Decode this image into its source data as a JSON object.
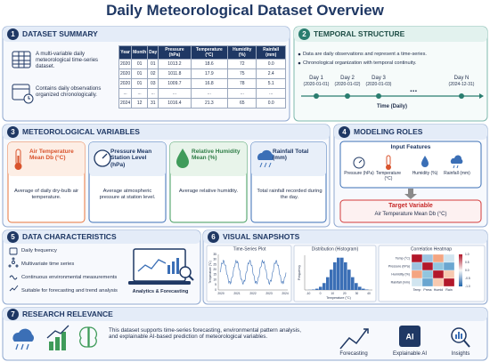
{
  "title": "Daily Meteorological Dataset Overview",
  "summary": {
    "number": "1",
    "heading": "DATASET SUMMARY",
    "items": [
      "A multi-variable daily meteorological time-series dataset.",
      "Contains daily observations organized chronologically."
    ],
    "table": {
      "header": [
        "Year",
        "Month",
        "Day",
        "Pressure (hPa)",
        "Temperature (°C)",
        "Humidity (%)",
        "Rainfall (mm)"
      ],
      "rows": [
        [
          "2020",
          "01",
          "01",
          "1013.2",
          "18.6",
          "72",
          "0.0"
        ],
        [
          "2020",
          "01",
          "02",
          "1011.8",
          "17.9",
          "75",
          "2.4"
        ],
        [
          "2020",
          "01",
          "03",
          "1009.7",
          "16.8",
          "78",
          "5.1"
        ],
        [
          "...",
          "...",
          "...",
          "...",
          "...",
          "...",
          "..."
        ],
        [
          "2024",
          "12",
          "31",
          "1016.4",
          "21.3",
          "65",
          "0.0"
        ]
      ]
    }
  },
  "temporal": {
    "number": "2",
    "heading": "TEMPORAL STRUCTURE",
    "bullets": [
      "Data are daily observations and represent a time-series.",
      "Chronological organization with temporal continuity."
    ],
    "timeline": [
      {
        "label": "Day 1",
        "date": "(2020-01-01)"
      },
      {
        "label": "Day 2",
        "date": "(2020-01-02)"
      },
      {
        "label": "Day 3",
        "date": "(2020-01-03)"
      },
      {
        "label": "Day N",
        "date": "(2024-12-31)"
      }
    ],
    "ellipsis": "...",
    "axis_label": "Time (Daily)"
  },
  "variables": {
    "number": "3",
    "heading": "METEOROLOGICAL VARIABLES",
    "cards": [
      {
        "name": "Air Temperature Mean Db (°C)",
        "description": "Average of daily dry-bulb air temperature."
      },
      {
        "name": "Pressure Mean Station Level (hPa)",
        "description": "Average atmospheric pressure at station level."
      },
      {
        "name": "Relative Humidity Mean (%)",
        "description": "Average relative humidity."
      },
      {
        "name": "Rainfall Total (mm)",
        "description": "Total rainfall recorded during the day."
      }
    ]
  },
  "modeling": {
    "number": "4",
    "heading": "MODELING ROLES",
    "input_heading": "Input Features",
    "inputs": [
      "Pressure (hPa)",
      "Temperature (°C)",
      "Humidity (%)",
      "Rainfall (mm)"
    ],
    "target_heading": "Target Variable",
    "target": "Air Temperature Mean Db (°C)"
  },
  "characteristics": {
    "number": "5",
    "heading": "DATA CHARACTERISTICS",
    "items": [
      "Daily frequency",
      "Multivariate time series",
      "Continuous environmental measurements",
      "Suitable for forecasting and trend analysis"
    ],
    "caption": "Analytics & Forecasting"
  },
  "snapshots": {
    "number": "6",
    "heading": "VISUAL SNAPSHOTS",
    "time_series": {
      "title": "Time-Series Plot",
      "y_label": "Temperature (°C)",
      "x_ticks": [
        "2020",
        "2021",
        "2022",
        "2023",
        "2024"
      ],
      "y_ticks": [
        "0",
        "5",
        "10",
        "15",
        "20",
        "25",
        "30",
        "35"
      ]
    },
    "histogram": {
      "title": "Distribution (Histogram)",
      "y_label": "Frequency",
      "x_label": "Temperature (°C)",
      "x_ticks": [
        "-10",
        "0",
        "10",
        "20",
        "30",
        "40"
      ]
    },
    "heatmap": {
      "title": "Correlation Heatmap",
      "rows": [
        "Temp (°C)",
        "Pressure (hPa)",
        "Humidity (%)",
        "Rainfall (mm)"
      ],
      "cols": [
        "Temp",
        "Press",
        "Humid",
        "Rain"
      ],
      "colorbar": [
        "1.0",
        "0.5",
        "0.0",
        "-0.5",
        "-1.0"
      ]
    }
  },
  "relevance": {
    "number": "7",
    "heading": "RESEARCH RELEVANCE",
    "text": "This dataset supports time-series forecasting, environmental pattern analysis, and explainable AI-based prediction of meteorological variables.",
    "ai_badge": "AI",
    "icons": [
      "Forecasting",
      "Explainable AI",
      "Insights"
    ]
  }
}
